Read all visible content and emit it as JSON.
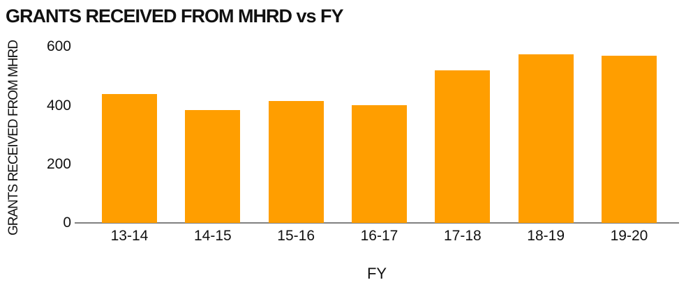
{
  "chart_data": {
    "type": "bar",
    "title": "GRANTS RECEIVED FROM MHRD vs FY",
    "xlabel": "FY",
    "ylabel": "GRANTS RECEIVED FROM MHRD",
    "categories": [
      "13-14",
      "14-15",
      "15-16",
      "16-17",
      "17-18",
      "18-19",
      "19-20"
    ],
    "values": [
      440,
      385,
      415,
      402,
      520,
      575,
      570
    ],
    "yticks": [
      0,
      200,
      400,
      600
    ],
    "ylim": [
      0,
      600
    ],
    "grid": "off",
    "legend": "none",
    "colors": {
      "bar": "#FF9E00",
      "axis_line": "#808080",
      "text": "#111111",
      "background": "#FFFFFF"
    }
  }
}
